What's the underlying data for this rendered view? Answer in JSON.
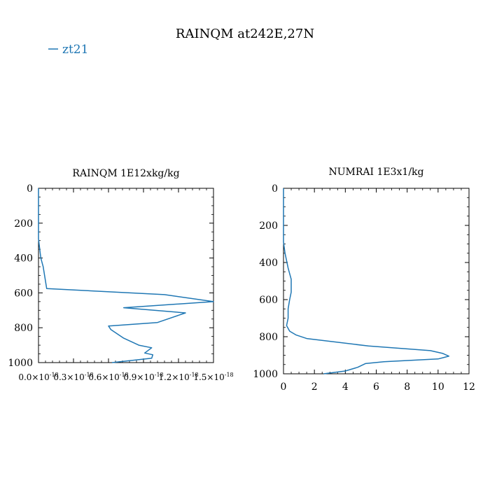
{
  "figure": {
    "title": "RAINQM at242E,27N",
    "legend": [
      {
        "label": "zt21",
        "color": "#1f77b4"
      }
    ],
    "line_color": "#1f77b4"
  },
  "chart_data": [
    {
      "type": "line",
      "title": "RAINQM  1E12xkg/kg",
      "xlabel": "",
      "ylabel": "",
      "xlim": [
        0,
        1.5e-18
      ],
      "ylim": [
        1000,
        0
      ],
      "y_inverted": true,
      "grid": false,
      "xticks": [
        0,
        3e-19,
        6e-19,
        9e-19,
        1.2e-18,
        1.5e-18
      ],
      "xtick_labels": [
        {
          "mant": "0.0×10",
          "exp": "-18"
        },
        {
          "mant": "0.3×10",
          "exp": "-18"
        },
        {
          "mant": "0.6×10",
          "exp": "-18"
        },
        {
          "mant": "0.9×10",
          "exp": "-18"
        },
        {
          "mant": "1.2×10",
          "exp": "-18"
        },
        {
          "mant": "1.5×10",
          "exp": "-18"
        }
      ],
      "yticks": [
        0,
        200,
        400,
        600,
        800,
        1000
      ],
      "ytick_labels": [
        "0",
        "200",
        "400",
        "600",
        "800",
        "1000"
      ],
      "series": [
        {
          "name": "zt21",
          "x": [
            0,
            0,
            2e-20,
            4e-20,
            7e-20,
            1.08e-18,
            1.5e-18,
            7.3e-19,
            1.26e-18,
            1.02e-18,
            6e-19,
            6.2e-19,
            7.3e-19,
            8.6e-19,
            9.7e-19,
            9.1e-19,
            9.8e-19,
            9.7e-19,
            6.3e-19
          ],
          "y": [
            0,
            290,
            400,
            450,
            575,
            610,
            650,
            685,
            715,
            770,
            790,
            810,
            860,
            900,
            915,
            945,
            955,
            975,
            1000
          ]
        }
      ]
    },
    {
      "type": "line",
      "title": "NUMRAI  1E3x1/kg",
      "xlabel": "",
      "ylabel": "",
      "xlim": [
        0,
        12
      ],
      "ylim": [
        1000,
        0
      ],
      "y_inverted": true,
      "grid": false,
      "xticks": [
        0,
        2,
        4,
        6,
        8,
        10,
        12
      ],
      "xtick_labels": [
        "0",
        "2",
        "4",
        "6",
        "8",
        "10",
        "12"
      ],
      "yticks": [
        0,
        200,
        400,
        600,
        800,
        1000
      ],
      "ytick_labels": [
        "0",
        "200",
        "400",
        "600",
        "800",
        "1000"
      ],
      "series": [
        {
          "name": "zt21",
          "x": [
            0,
            0,
            0.1,
            0.3,
            0.5,
            0.5,
            0.4,
            0.3,
            0.3,
            0.2,
            0.4,
            0.8,
            1.5,
            5.5,
            9.5,
            10.3,
            10.7,
            10.0,
            6.5,
            5.3,
            4.8,
            4.0,
            2.6
          ],
          "y": [
            0,
            290,
            350,
            430,
            490,
            560,
            600,
            650,
            700,
            740,
            770,
            790,
            810,
            850,
            875,
            890,
            905,
            920,
            935,
            945,
            965,
            985,
            1000
          ]
        }
      ]
    }
  ]
}
